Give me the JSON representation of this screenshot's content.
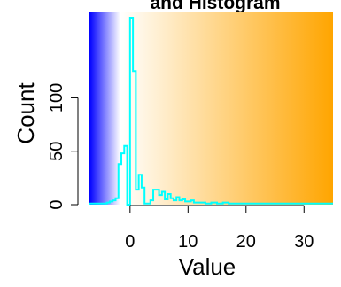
{
  "chart_data": {
    "type": "area",
    "title": "and Histogram",
    "xlabel": "Value",
    "ylabel": "Count",
    "xlim": [
      -7,
      35
    ],
    "ylim": [
      0,
      180
    ],
    "xticks": [
      0,
      10,
      20,
      30
    ],
    "xtick_labels": [
      "0",
      "10",
      "20",
      "30"
    ],
    "yticks": [
      0,
      50,
      100
    ],
    "ytick_labels": [
      "0",
      "50",
      "100"
    ],
    "background_gradient": {
      "stops": [
        {
          "x": -7,
          "color": "#0000ff"
        },
        {
          "x": -1.7,
          "color": "#ffffff"
        },
        {
          "x": 35,
          "color": "#ffa500"
        }
      ]
    },
    "series": [
      {
        "color": "#00ffff",
        "step": 0.5,
        "x": [
          -7.0,
          -6.5,
          -6.0,
          -5.5,
          -5.0,
          -4.5,
          -4.0,
          -3.5,
          -3.0,
          -2.5,
          -2.0,
          -1.5,
          -1.0,
          -0.5,
          0.0,
          0.5,
          1.0,
          1.5,
          2.0,
          2.5,
          3.0,
          3.5,
          4.0,
          4.5,
          5.0,
          5.5,
          6.0,
          6.5,
          7.0,
          7.5,
          8.0,
          8.5,
          9.0,
          9.5,
          10.0,
          10.5,
          11.0,
          11.5,
          12.0,
          13.0,
          14.0,
          15.0,
          16.0,
          17.0,
          18.0,
          20.0,
          22.0,
          25.0,
          28.0,
          31.0,
          34.5
        ],
        "y": [
          1,
          1,
          1,
          1,
          1,
          1,
          2,
          3,
          4,
          6,
          38,
          48,
          55,
          0,
          175,
          125,
          14,
          28,
          16,
          1,
          1,
          4,
          14,
          14,
          9,
          12,
          5,
          10,
          6,
          4,
          7,
          4,
          5,
          3,
          3,
          4,
          2,
          2,
          2,
          1,
          2,
          1,
          2,
          1,
          1,
          1,
          1,
          1,
          1,
          1,
          1
        ]
      }
    ]
  }
}
